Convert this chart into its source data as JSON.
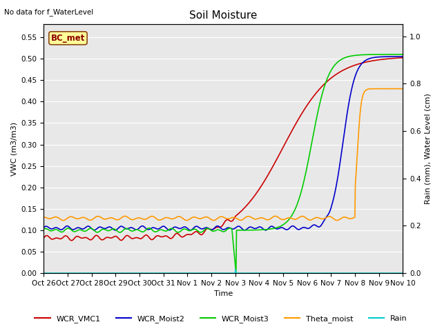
{
  "title": "Soil Moisture",
  "top_left_text": "No data for f_WaterLevel",
  "ylabel_left": "VWC (m3/m3)",
  "ylabel_right": "Rain (mm), Water Level (cm)",
  "xlabel": "Time",
  "ylim_left": [
    0.0,
    0.58
  ],
  "ylim_right": [
    0.0,
    1.05
  ],
  "background_color": "#e8e8e8",
  "title_fontsize": 11,
  "annotation_box_text": "BC_met",
  "annotation_box_color": "#ffff99",
  "annotation_box_edge": "#8B4513",
  "x_tick_labels": [
    "Oct 26",
    "Oct 27",
    "Oct 28",
    "Oct 29",
    "Oct 30",
    "Oct 31",
    "Nov 1",
    "Nov 2",
    "Nov 3",
    "Nov 4",
    "Nov 5",
    "Nov 6",
    "Nov 7",
    "Nov 8",
    "Nov 9",
    "Nov 10"
  ],
  "series": {
    "WCR_VMC1": {
      "color": "#cc0000",
      "linewidth": 1.2
    },
    "WCR_Moist2": {
      "color": "#0000cc",
      "linewidth": 1.2
    },
    "WCR_Moist3": {
      "color": "#00cc00",
      "linewidth": 1.2
    },
    "Theta_moist": {
      "color": "#ff9900",
      "linewidth": 1.2
    },
    "Rain": {
      "color": "#00cccc",
      "linewidth": 1.2
    }
  },
  "legend_fontsize": 8,
  "tick_fontsize": 7.5,
  "left_yticks": [
    0.0,
    0.05,
    0.1,
    0.15,
    0.2,
    0.25,
    0.3,
    0.35,
    0.4,
    0.45,
    0.5,
    0.55
  ],
  "right_yticks": [
    0.0,
    0.2,
    0.4,
    0.6,
    0.8,
    1.0
  ]
}
